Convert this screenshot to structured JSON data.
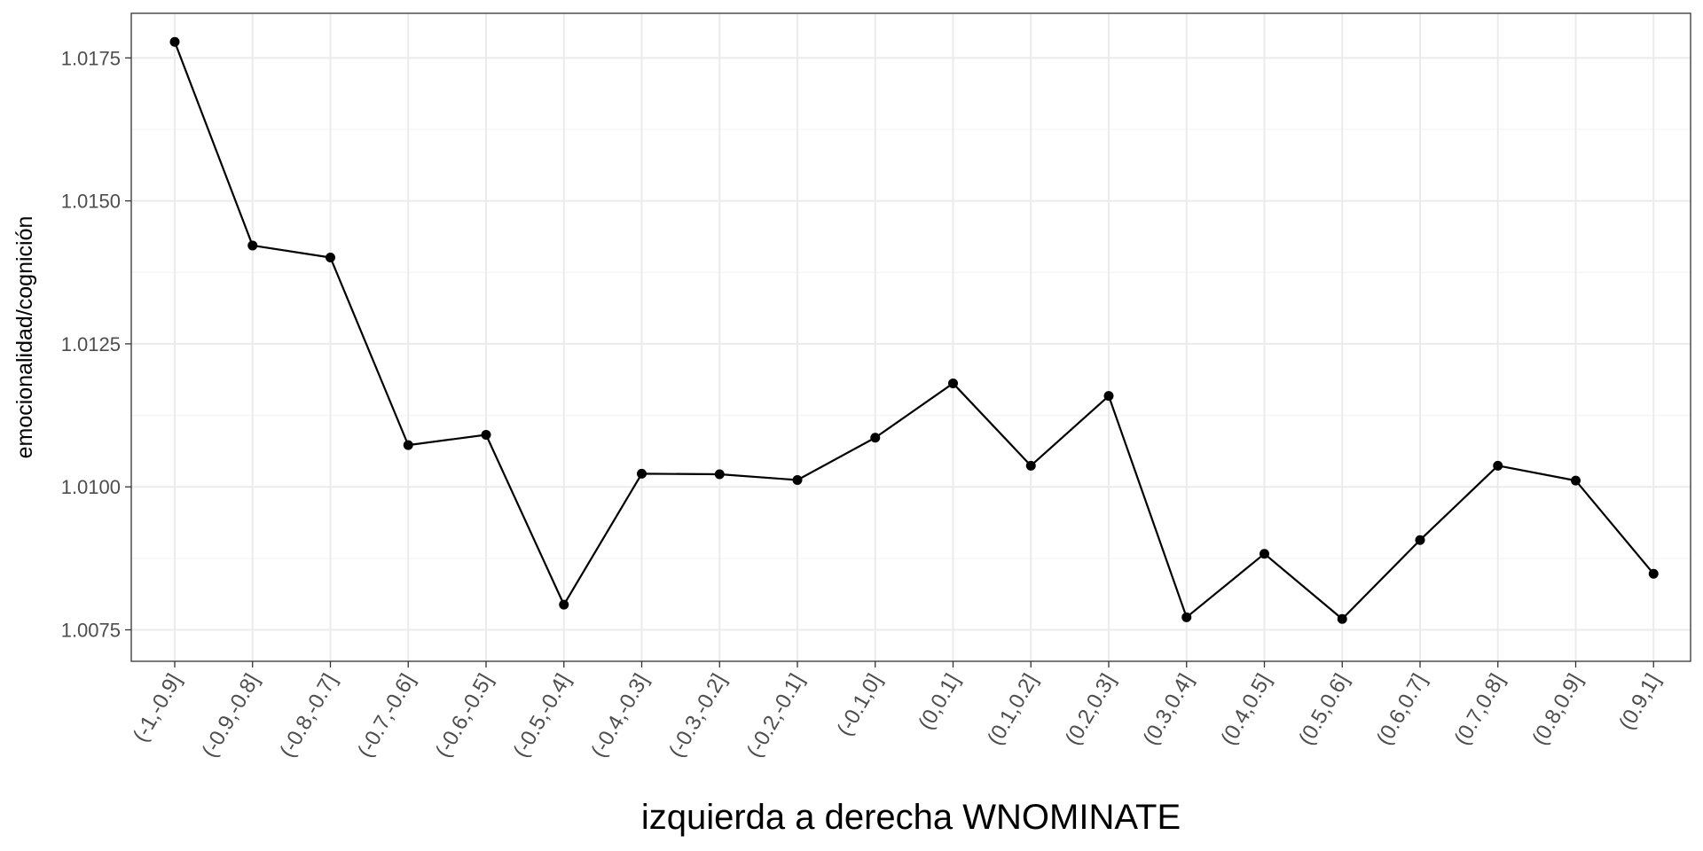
{
  "chart_data": {
    "type": "line",
    "title": "",
    "xlabel": "izquierda a derecha WNOMINATE",
    "ylabel": "emocionalidad/cognición",
    "categories": [
      "(-1,-0.9]",
      "(-0.9,-0.8]",
      "(-0.8,-0.7]",
      "(-0.7,-0.6]",
      "(-0.6,-0.5]",
      "(-0.5,-0.4]",
      "(-0.4,-0.3]",
      "(-0.3,-0.2]",
      "(-0.2,-0.1]",
      "(-0.1,0]",
      "(0,0.1]",
      "(0.1,0.2]",
      "(0.2,0.3]",
      "(0.3,0.4]",
      "(0.4,0.5]",
      "(0.5,0.6]",
      "(0.6,0.7]",
      "(0.7,0.8]",
      "(0.8,0.9]",
      "(0.9,1]"
    ],
    "series": [
      {
        "values": [
          1.01778,
          1.01422,
          1.01401,
          1.01073,
          1.01091,
          1.00794,
          1.01023,
          1.01022,
          1.01012,
          1.01086,
          1.01181,
          1.01037,
          1.01159,
          1.00772,
          1.00883,
          1.00769,
          1.00907,
          1.01037,
          1.01011,
          1.00848
        ]
      }
    ],
    "yticks": [
      "1.0075",
      "1.0100",
      "1.0125",
      "1.0150",
      "1.0175"
    ],
    "ylim": [
      1.00695,
      1.01828
    ],
    "grid": true,
    "legend": "none",
    "colors": {
      "line": "#000000",
      "point": "#000000",
      "grid_major": "#ebebeb",
      "grid_minor": "#f5f5f5",
      "panel_border": "#333333",
      "tick_text": "#4d4d4d"
    }
  }
}
